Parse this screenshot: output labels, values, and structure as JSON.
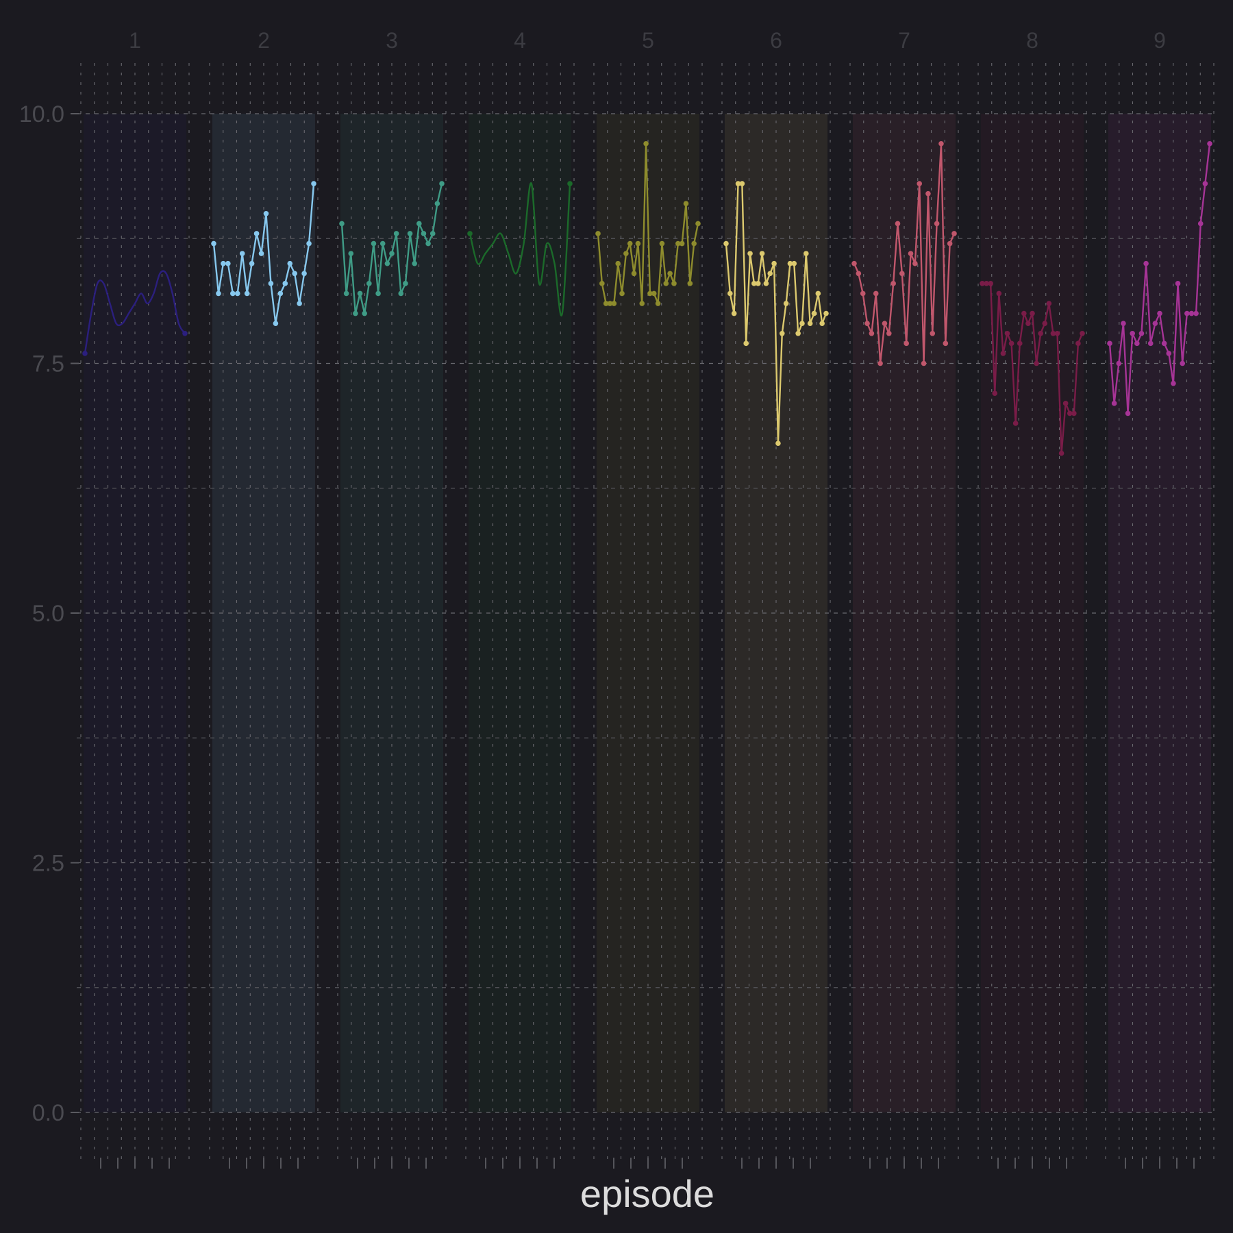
{
  "chart_data": {
    "type": "line",
    "title": "",
    "xlabel": "episode",
    "ylabel": "",
    "ylim": [
      -0.5,
      11
    ],
    "yticks": [
      "0.0",
      "2.5",
      "5.0",
      "7.5",
      "10.0"
    ],
    "grid": true,
    "legend": "none",
    "facets": [
      {
        "name": "1",
        "color": "#2b1f7e",
        "smooth": true,
        "values": [
          7.6,
          8.0,
          8.3,
          8.3,
          8.1,
          7.9,
          7.9,
          8.0,
          8.1,
          8.2,
          8.1,
          8.2,
          8.4,
          8.4,
          8.2,
          7.9,
          7.8
        ]
      },
      {
        "name": "2",
        "color": "#87c8ee",
        "values": [
          8.7,
          8.2,
          8.5,
          8.5,
          8.2,
          8.2,
          8.6,
          8.2,
          8.5,
          8.8,
          8.6,
          9.0,
          8.3,
          7.9,
          8.2,
          8.3,
          8.5,
          8.4,
          8.1,
          8.4,
          8.7,
          9.3
        ]
      },
      {
        "name": "3",
        "color": "#3f9c86",
        "values": [
          8.9,
          8.2,
          8.6,
          8.0,
          8.2,
          8.0,
          8.3,
          8.7,
          8.2,
          8.7,
          8.5,
          8.6,
          8.8,
          8.2,
          8.3,
          8.8,
          8.5,
          8.9,
          8.8,
          8.7,
          8.8,
          9.1,
          9.3
        ]
      },
      {
        "name": "4",
        "color": "#1b6a2a",
        "smooth": true,
        "values": [
          8.8,
          8.5,
          8.6,
          8.7,
          8.8,
          8.6,
          8.4,
          8.7,
          9.3,
          8.3,
          8.7,
          8.5,
          8.0,
          9.3
        ]
      },
      {
        "name": "5",
        "color": "#8e8c2d",
        "values": [
          8.8,
          8.3,
          8.1,
          8.1,
          8.1,
          8.5,
          8.2,
          8.6,
          8.7,
          8.4,
          8.7,
          8.1,
          9.7,
          8.2,
          8.2,
          8.1,
          8.7,
          8.3,
          8.4,
          8.3,
          8.7,
          8.7,
          9.1,
          8.3,
          8.7,
          8.9
        ]
      },
      {
        "name": "6",
        "color": "#dcc96e",
        "values": [
          8.7,
          8.2,
          8.0,
          9.3,
          9.3,
          7.7,
          8.6,
          8.3,
          8.3,
          8.6,
          8.3,
          8.4,
          8.5,
          6.7,
          7.8,
          8.1,
          8.5,
          8.5,
          7.8,
          7.9,
          8.6,
          7.9,
          8.0,
          8.2,
          7.9,
          8.0
        ]
      },
      {
        "name": "7",
        "color": "#c1576c",
        "values": [
          8.5,
          8.4,
          8.2,
          7.9,
          7.8,
          8.2,
          7.5,
          7.9,
          7.8,
          8.3,
          8.9,
          8.4,
          7.7,
          8.6,
          8.5,
          9.3,
          7.5,
          9.2,
          7.8,
          8.9,
          9.7,
          7.7,
          8.7,
          8.8
        ]
      },
      {
        "name": "8",
        "color": "#7a1c48",
        "values": [
          8.3,
          8.3,
          8.3,
          7.2,
          8.2,
          7.6,
          7.8,
          7.7,
          6.9,
          7.7,
          8.0,
          7.9,
          8.0,
          7.5,
          7.8,
          7.9,
          8.1,
          7.8,
          7.8,
          6.6,
          7.1,
          7.0,
          7.0,
          7.7,
          7.8
        ]
      },
      {
        "name": "9",
        "color": "#a63496",
        "values": [
          7.7,
          7.1,
          7.5,
          7.9,
          7.0,
          7.8,
          7.7,
          7.8,
          8.5,
          7.7,
          7.9,
          8.0,
          7.7,
          7.6,
          7.3,
          8.3,
          7.5,
          8.0,
          8.0,
          8.0,
          8.9,
          9.3,
          9.7
        ]
      }
    ]
  }
}
